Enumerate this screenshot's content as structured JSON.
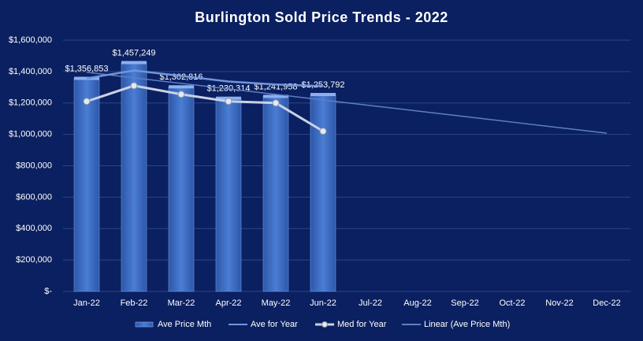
{
  "chart_data": {
    "type": "bar",
    "title": "Burlington Sold Price Trends - 2022",
    "categories": [
      "Jan-22",
      "Feb-22",
      "Mar-22",
      "Apr-22",
      "May-22",
      "Jun-22",
      "Jul-22",
      "Aug-22",
      "Sep-22",
      "Oct-22",
      "Nov-22",
      "Dec-22"
    ],
    "series": [
      {
        "name": "Ave Price Mth",
        "type": "bar",
        "color": "#3f6fc4",
        "values": [
          1356853,
          1457249,
          1302816,
          1230314,
          1241958,
          1253792,
          null,
          null,
          null,
          null,
          null,
          null
        ],
        "value_labels": [
          "$1,356,853",
          "$1,457,249",
          "$1,302,816",
          "$1,230,314",
          "$1,241,958",
          "$1,253,792",
          null,
          null,
          null,
          null,
          null,
          null
        ]
      },
      {
        "name": "Ave for Year",
        "type": "line",
        "color": "#6f96dc",
        "values": [
          1356853,
          1407051,
          1372306,
          1336808,
          1317838,
          1307164,
          null,
          null,
          null,
          null,
          null,
          null
        ]
      },
      {
        "name": "Med for Year",
        "type": "line",
        "color": "#c9d2e6",
        "marker": true,
        "values": [
          1210000,
          1310000,
          1255000,
          1210000,
          1200000,
          1020000,
          null,
          null,
          null,
          null,
          null,
          null
        ]
      },
      {
        "name": "Linear (Ave Price Mth)",
        "type": "line",
        "color": "#5c7fc4",
        "values": [
          1395284,
          1360036,
          1324788,
          1289540,
          1254292,
          1219044,
          1183796,
          1148548,
          1113300,
          1078052,
          1042804,
          1007556
        ]
      }
    ],
    "ylim": [
      0,
      1600000
    ],
    "yticks": [
      {
        "value": 0,
        "label": "$-"
      },
      {
        "value": 200000,
        "label": "$200,000"
      },
      {
        "value": 400000,
        "label": "$400,000"
      },
      {
        "value": 600000,
        "label": "$600,000"
      },
      {
        "value": 800000,
        "label": "$800,000"
      },
      {
        "value": 1000000,
        "label": "$1,000,000"
      },
      {
        "value": 1200000,
        "label": "$1,200,000"
      },
      {
        "value": 1400000,
        "label": "$1,400,000"
      },
      {
        "value": 1600000,
        "label": "$1,600,000"
      }
    ],
    "grid": true,
    "legend": "bottom"
  }
}
